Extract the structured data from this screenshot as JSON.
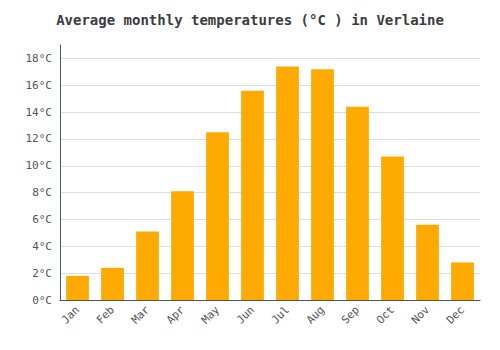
{
  "chart_data": {
    "type": "bar",
    "title": "Average monthly temperatures (°C ) in Verlaine",
    "categories": [
      "Jan",
      "Feb",
      "Mar",
      "Apr",
      "May",
      "Jun",
      "Jul",
      "Aug",
      "Sep",
      "Oct",
      "Nov",
      "Dec"
    ],
    "values": [
      1.8,
      2.4,
      5.1,
      8.1,
      12.5,
      15.6,
      17.4,
      17.2,
      14.4,
      10.7,
      5.6,
      2.8
    ],
    "color": "#FFAA00",
    "ylim": [
      0,
      19
    ],
    "yticks": [
      {
        "value": 0,
        "label": "0°C"
      },
      {
        "value": 2,
        "label": "2°C"
      },
      {
        "value": 4,
        "label": "4°C"
      },
      {
        "value": 6,
        "label": "6°C"
      },
      {
        "value": 8,
        "label": "8°C"
      },
      {
        "value": 10,
        "label": "10°C"
      },
      {
        "value": 12,
        "label": "12°C"
      },
      {
        "value": 14,
        "label": "14°C"
      },
      {
        "value": 16,
        "label": "16°C"
      },
      {
        "value": 18,
        "label": "18°C"
      }
    ],
    "grid": true
  }
}
